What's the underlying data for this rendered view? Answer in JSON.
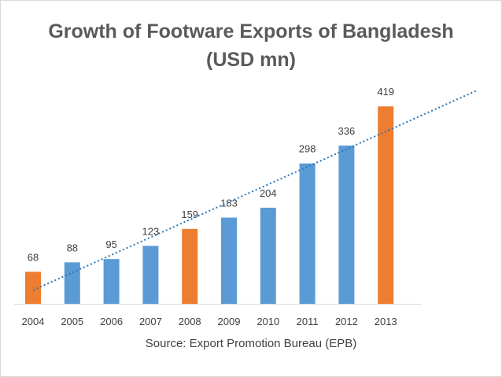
{
  "chart_data": {
    "type": "bar",
    "title": "Growth of Footware Exports of Bangladesh",
    "subtitle": "(USD mn)",
    "categories": [
      "2004",
      "2005",
      "2006",
      "2007",
      "2008",
      "2009",
      "2010",
      "2011",
      "2012",
      "2013"
    ],
    "values": [
      68,
      88,
      95,
      123,
      159,
      183,
      204,
      298,
      336,
      419
    ],
    "data_labels": [
      "68",
      "88",
      "95",
      "123",
      "159",
      "183",
      "204",
      "298",
      "336",
      "419"
    ],
    "highlighted_categories": [
      "2004",
      "2008",
      "2013"
    ],
    "colors": {
      "default_bar": "#5b9bd5",
      "highlight_bar": "#ed7d31",
      "trendline": "#2e75b6",
      "axis": "#d9d9d9",
      "label_text": "#404040",
      "title_text": "#5a5a5a"
    },
    "trendline": {
      "type": "linear",
      "style": "dotted"
    },
    "ylim": [
      0,
      450
    ],
    "grid": false,
    "xlabel": "",
    "ylabel": ""
  },
  "source": "Source: Export Promotion Bureau (EPB)"
}
